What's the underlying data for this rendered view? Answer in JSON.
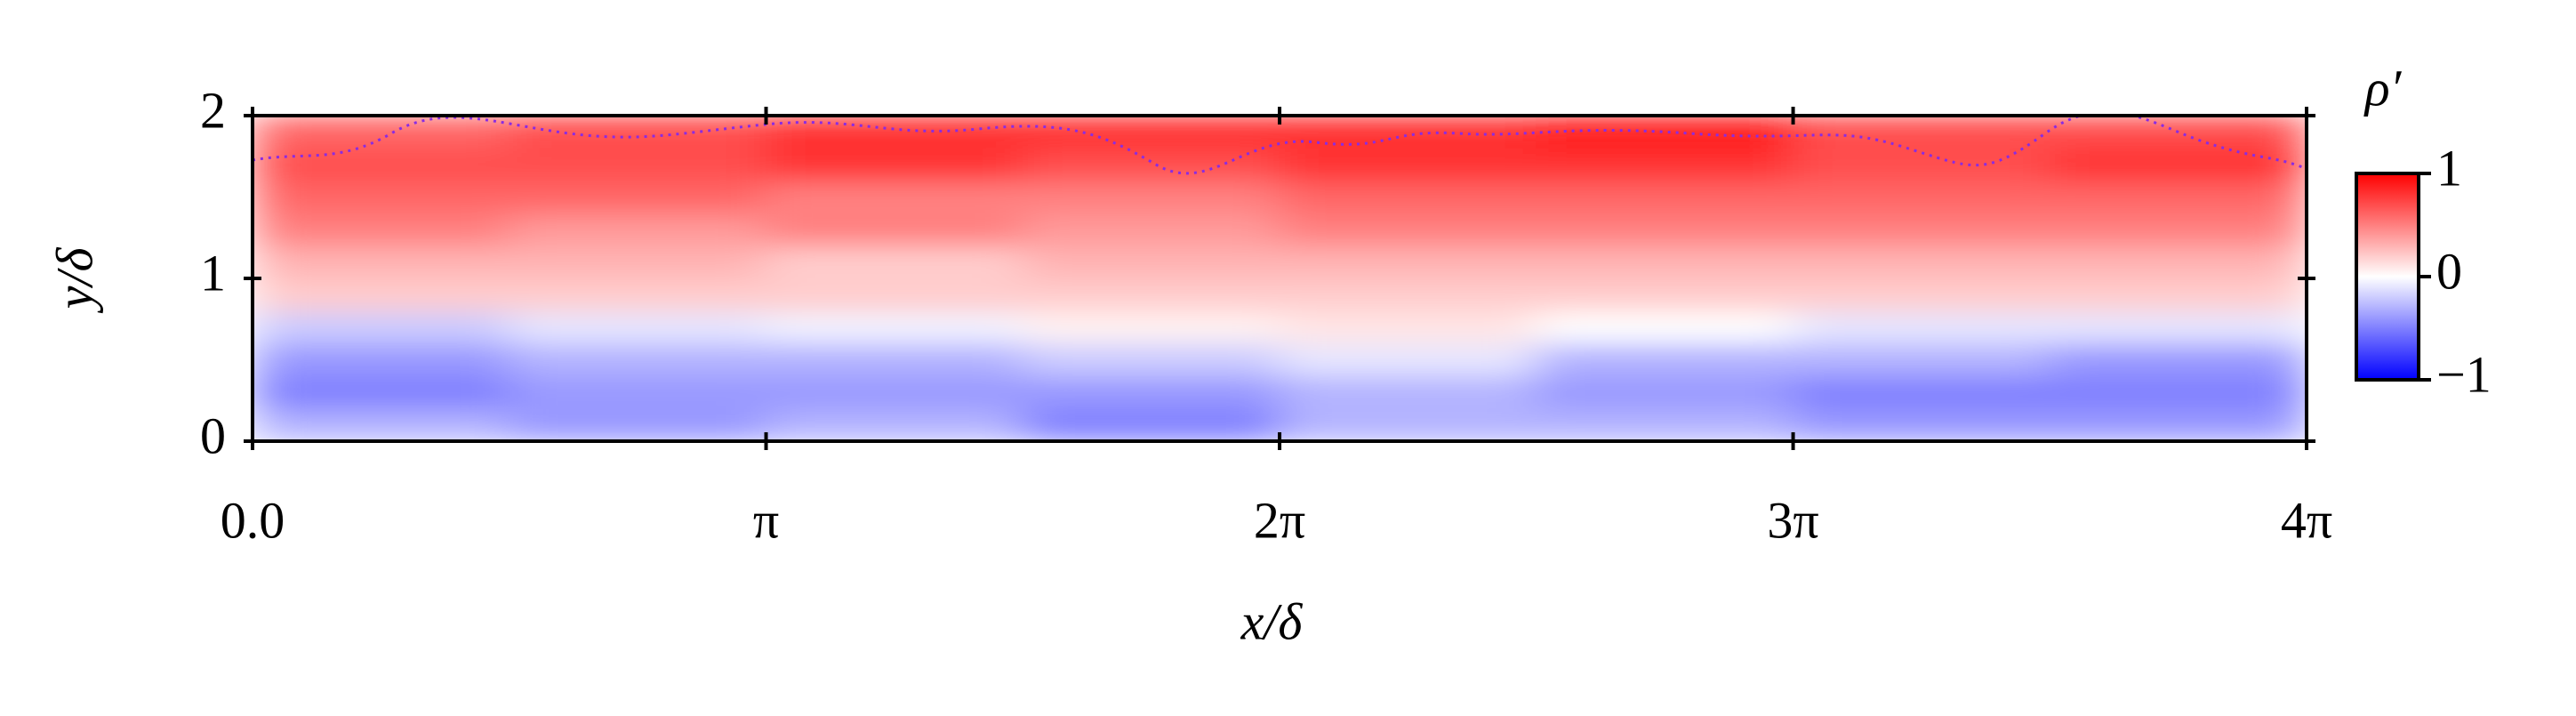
{
  "chart_data": {
    "type": "heatmap",
    "xlabel": "x/δ",
    "ylabel": "y/δ",
    "colorbar_label": "ρ′",
    "xlim": [
      0,
      12.566
    ],
    "ylim": [
      0,
      2
    ],
    "xticks": [
      {
        "value": 0,
        "label": "0.0"
      },
      {
        "value": 3.1416,
        "label": "π"
      },
      {
        "value": 6.2832,
        "label": "2π"
      },
      {
        "value": 9.4248,
        "label": "3π"
      },
      {
        "value": 12.566,
        "label": "4π"
      }
    ],
    "yticks": [
      0,
      1,
      2
    ],
    "clim": [
      -1,
      1
    ],
    "cticks": [
      {
        "value": -1,
        "label": "−1"
      },
      0,
      1
    ],
    "colormap": [
      "#0000ff",
      "#ffffff",
      "#ff0000"
    ],
    "z": [
      [
        -0.3,
        -0.4,
        -0.3,
        -0.5,
        -0.3,
        -0.3,
        -0.4,
        -0.4
      ],
      [
        -0.5,
        -0.4,
        -0.4,
        -0.4,
        -0.3,
        -0.4,
        -0.5,
        -0.5
      ],
      [
        -0.4,
        -0.3,
        -0.3,
        -0.2,
        -0.1,
        -0.3,
        -0.3,
        -0.4
      ],
      [
        -0.2,
        -0.1,
        -0.05,
        0.05,
        0.1,
        0,
        -0.1,
        -0.1
      ],
      [
        0.2,
        0.2,
        0.2,
        0.2,
        0.2,
        0.2,
        0.2,
        0.2
      ],
      [
        0.3,
        0.3,
        0.2,
        0.3,
        0.3,
        0.3,
        0.3,
        0.3
      ],
      [
        0.5,
        0.4,
        0.5,
        0.4,
        0.5,
        0.5,
        0.5,
        0.5
      ],
      [
        0.6,
        0.6,
        0.5,
        0.5,
        0.6,
        0.6,
        0.6,
        0.6
      ],
      [
        0.7,
        0.7,
        0.8,
        0.7,
        0.8,
        0.8,
        0.7,
        0.8
      ],
      [
        0.6,
        0.7,
        0.8,
        0.8,
        0.8,
        0.9,
        0.7,
        0.7
      ]
    ]
  }
}
